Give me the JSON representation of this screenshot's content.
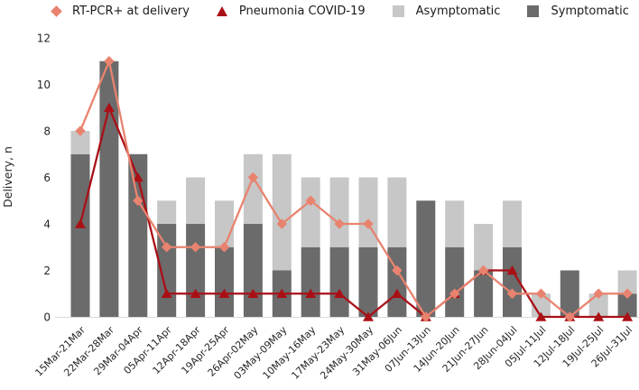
{
  "chart_data": {
    "type": "bar",
    "subtype": "stacked bars with two overlaid line series",
    "title": "",
    "xlabel": "",
    "ylabel": "Delivery, n",
    "ylim": [
      0,
      12
    ],
    "yticks": [
      0,
      2,
      4,
      6,
      8,
      10,
      12
    ],
    "grid": false,
    "legend_position": "top",
    "categories": [
      "15Mar-21Mar",
      "22Mar-28Mar",
      "29Mar-04Apr",
      "05Apr-11Apr",
      "12Apr-18Apr",
      "19Apr-25Apr",
      "26Apr-02May",
      "03May-09May",
      "10May-16May",
      "17May-23May",
      "24May-30May",
      "31May-06Jun",
      "07Jun-13Jun",
      "14Jun-20Jun",
      "21Jun-27Jun",
      "28Jun-04Jul",
      "05Jul-11Jul",
      "12Jul-18Jul",
      "19Jul-25Jul",
      "26Jul-31Jul"
    ],
    "bar_series": [
      {
        "name": "Symptomatic",
        "color": "#6B6B6B",
        "values": [
          7,
          11,
          7,
          4,
          4,
          3,
          4,
          2,
          3,
          3,
          3,
          3,
          5,
          3,
          2,
          3,
          0,
          2,
          0,
          1
        ]
      },
      {
        "name": "Asymptomatic",
        "color": "#C7C7C7",
        "values": [
          1,
          0,
          0,
          1,
          2,
          2,
          3,
          5,
          3,
          3,
          3,
          3,
          0,
          2,
          2,
          2,
          1,
          0,
          1,
          1
        ]
      }
    ],
    "line_series": [
      {
        "name": "RT-PCR+ at delivery",
        "marker": "diamond",
        "color": "#E8836F",
        "values": [
          8,
          11,
          5,
          3,
          3,
          3,
          6,
          4,
          5,
          4,
          4,
          2,
          0,
          1,
          2,
          1,
          1,
          0,
          1,
          1
        ]
      },
      {
        "name": "Pneumonia COVID-19",
        "marker": "triangle",
        "color": "#A91016",
        "values": [
          4,
          9,
          6,
          1,
          1,
          1,
          1,
          1,
          1,
          1,
          0,
          1,
          0,
          1,
          2,
          2,
          0,
          0,
          0,
          0
        ]
      }
    ],
    "axis_line_color": "#D9D9D9",
    "tick_label_color": "#262626"
  }
}
